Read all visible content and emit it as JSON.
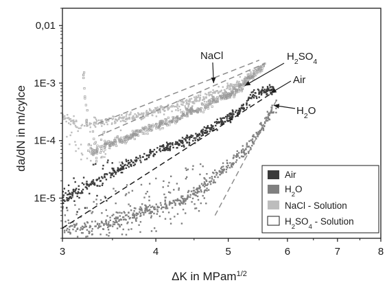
{
  "chart_data": {
    "type": "scatter",
    "title": "",
    "xlabel": {
      "main": "ΔK in MPam",
      "sup": "1/2"
    },
    "ylabel": "da/dN in m/cylce",
    "x_scale": "log",
    "y_scale": "log",
    "xlim": [
      3,
      8
    ],
    "ylim": [
      2e-06,
      0.02
    ],
    "x_ticks": [
      {
        "value": 3,
        "label": "3"
      },
      {
        "value": 4,
        "label": "4"
      },
      {
        "value": 5,
        "label": "5"
      },
      {
        "value": 6,
        "label": "6"
      },
      {
        "value": 7,
        "label": "7"
      },
      {
        "value": 8,
        "label": "8"
      }
    ],
    "y_ticks": [
      {
        "value": 1e-05,
        "label": "1E-5"
      },
      {
        "value": 0.0001,
        "label": "1E-4"
      },
      {
        "value": 0.001,
        "label": "1E-3"
      },
      {
        "value": 0.01,
        "label": "0,01"
      }
    ],
    "grid": false,
    "legend_position": "bottom-right",
    "series": [
      {
        "name": "Air",
        "legend_label": "Air",
        "color": "#3a3a3a",
        "marker": "filled-square",
        "x_range": [
          3.0,
          5.75
        ],
        "points": [
          [
            3.0,
            1e-05
          ],
          [
            3.2,
            1.5e-05
          ],
          [
            3.4,
            2.2e-05
          ],
          [
            3.6,
            3.4e-05
          ],
          [
            3.8,
            4.8e-05
          ],
          [
            4.0,
            6.6e-05
          ],
          [
            4.2,
            8.2e-05
          ],
          [
            4.4,
            0.0001
          ],
          [
            4.6,
            0.00013
          ],
          [
            4.8,
            0.00018
          ],
          [
            5.0,
            0.00025
          ],
          [
            5.2,
            0.00033
          ],
          [
            5.4,
            0.00062
          ],
          [
            5.6,
            0.0007
          ],
          [
            5.75,
            0.0008
          ]
        ],
        "fit_line": [
          [
            3.0,
            3e-06
          ],
          [
            5.75,
            0.0007
          ]
        ]
      },
      {
        "name": "H2O",
        "legend_label": {
          "main": "H",
          "sub": "2",
          "rest": "O"
        },
        "color": "#808080",
        "marker": "filled-square",
        "x_range": [
          3.0,
          5.8
        ],
        "points": [
          [
            3.3,
            3e-06
          ],
          [
            3.5,
            4e-06
          ],
          [
            3.7,
            5e-06
          ],
          [
            3.9,
            6e-06
          ],
          [
            4.1,
            7e-06
          ],
          [
            4.3,
            9e-06
          ],
          [
            4.5,
            1.2e-05
          ],
          [
            4.7,
            1.8e-05
          ],
          [
            4.9,
            3e-05
          ],
          [
            5.0,
            3.8e-05
          ],
          [
            5.2,
            6e-05
          ],
          [
            5.4,
            0.0001
          ],
          [
            5.6,
            0.0002
          ],
          [
            5.8,
            0.0004
          ]
        ],
        "fit_line": [
          [
            4.8,
            5e-06
          ],
          [
            5.8,
            0.0005
          ]
        ]
      },
      {
        "name": "NaCl - Solution",
        "legend_label": "NaCl - Solution",
        "color": "#bdbdbd",
        "marker": "filled-square",
        "x_range": [
          3.0,
          5.5
        ],
        "points": [
          [
            3.0,
            0.00025
          ],
          [
            3.2,
            0.00018
          ],
          [
            3.3,
            0.0002
          ],
          [
            3.5,
            0.00022
          ],
          [
            3.7,
            0.00026
          ],
          [
            3.9,
            0.0003
          ],
          [
            4.1,
            0.00035
          ],
          [
            4.3,
            0.00042
          ],
          [
            4.5,
            0.0005
          ],
          [
            4.7,
            0.0006
          ],
          [
            4.9,
            0.00075
          ],
          [
            5.1,
            0.0009
          ],
          [
            5.3,
            0.0012
          ],
          [
            5.5,
            0.0018
          ]
        ],
        "fit_line": [
          [
            3.35,
            0.0002
          ],
          [
            5.5,
            0.0025
          ]
        ]
      },
      {
        "name": "H2SO4 - Solution",
        "legend_label": {
          "main": "H",
          "sub": "2",
          "rest": "SO",
          "sub2": "4",
          "tail": " - Solution"
        },
        "color": "#9a9a9a",
        "marker": "open-square",
        "x_range": [
          3.2,
          5.6
        ],
        "points": [
          [
            3.2,
            0.0014
          ],
          [
            3.25,
            8e-05
          ],
          [
            3.3,
            6e-05
          ],
          [
            3.4,
            8e-05
          ],
          [
            3.6,
            0.0001
          ],
          [
            3.8,
            0.00014
          ],
          [
            4.0,
            0.00018
          ],
          [
            4.2,
            0.00022
          ],
          [
            4.4,
            0.0003
          ],
          [
            4.6,
            0.00036
          ],
          [
            4.8,
            0.0005
          ],
          [
            5.0,
            0.0006
          ],
          [
            5.2,
            0.00085
          ],
          [
            5.4,
            0.0014
          ],
          [
            5.6,
            0.002
          ]
        ],
        "fit_line": [
          [
            3.35,
            0.00012
          ],
          [
            5.6,
            0.0022
          ]
        ]
      }
    ],
    "annotations": [
      {
        "id": "nacl",
        "text": "NaCl",
        "target": [
          4.78,
          0.001
        ]
      },
      {
        "id": "h2so4",
        "text": {
          "main": "H",
          "sub": "2",
          "rest": "SO",
          "sub2": "4"
        },
        "target": [
          5.26,
          0.0009
        ]
      },
      {
        "id": "air",
        "text": "Air",
        "target": [
          5.7,
          0.00067
        ]
      },
      {
        "id": "h2o",
        "text": {
          "main": "H",
          "sub": "2",
          "rest": "O"
        },
        "target": [
          5.75,
          0.00041
        ]
      }
    ]
  }
}
